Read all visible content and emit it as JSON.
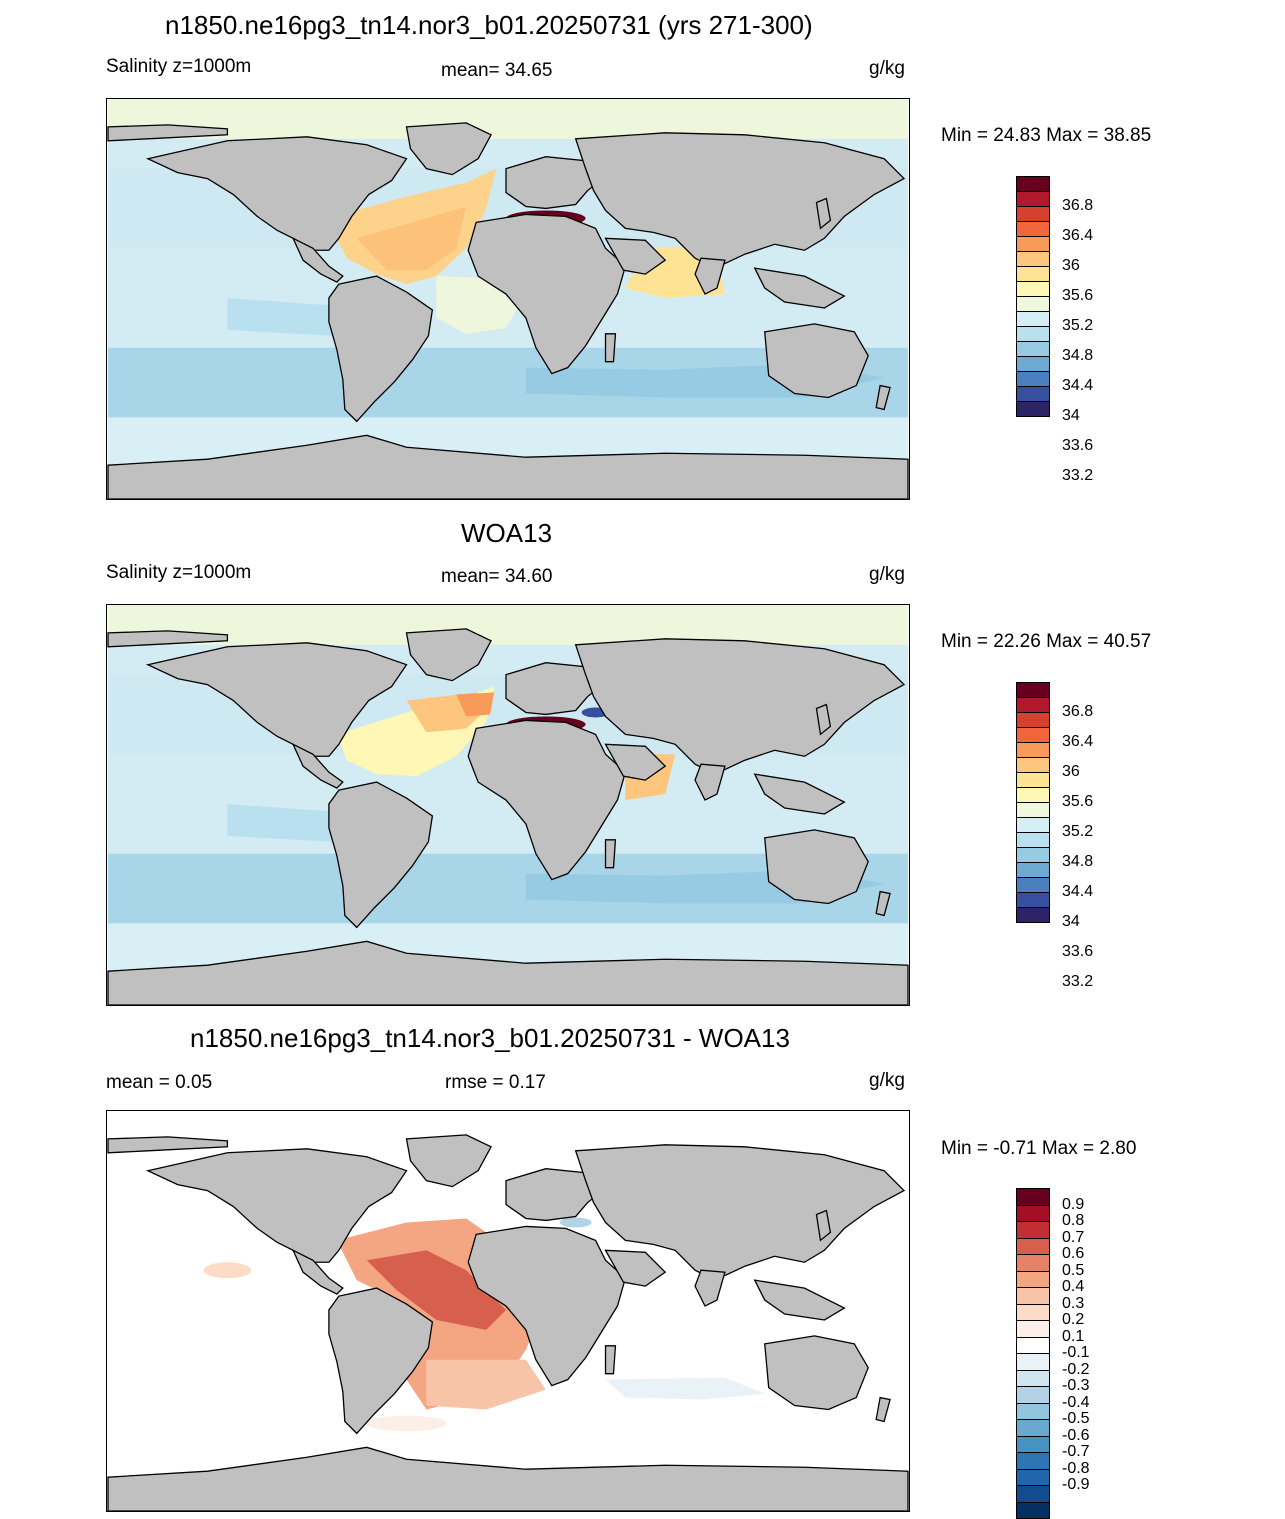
{
  "panels": [
    {
      "title": "n1850.ne16pg3_tn14.nor3_b01.20250731 (yrs 271-300)",
      "left_label": "Salinity z=1000m",
      "center_label": "mean=  34.65",
      "units": "g/kg",
      "minmax": "Min =  24.83 Max =  38.85",
      "ocean": "#d3ecf4",
      "bands": [
        {
          "c": "#eef7dc"
        },
        {
          "c": "#cfe9f3"
        },
        {
          "c": "#a9d5e8"
        },
        {
          "c": "#d8eff6"
        }
      ],
      "features": "atlantic-salty"
    },
    {
      "title": "WOA13",
      "left_label": "Salinity z=1000m",
      "center_label": "mean=  34.60",
      "units": "g/kg",
      "minmax": "Min =  22.26 Max =  40.57",
      "ocean": "#d3ecf4",
      "bands": [
        {
          "c": "#eef7dc"
        },
        {
          "c": "#cfe9f3"
        },
        {
          "c": "#a9d5e8"
        },
        {
          "c": "#d8eff6"
        }
      ],
      "features": "atlantic-woa"
    },
    {
      "title": "n1850.ne16pg3_tn14.nor3_b01.20250731 - WOA13",
      "left_label": "mean =   0.05",
      "center_label": "rmse =   0.17",
      "units": "g/kg",
      "minmax": "Min =  -0.71 Max =   2.80",
      "ocean": "#ffffff",
      "bands": [
        {
          "c": "#ffffff"
        },
        {
          "c": "#ffffff"
        },
        {
          "c": "#ffffff"
        },
        {
          "c": "#ffffff"
        }
      ],
      "features": "diff"
    }
  ],
  "colorbar_salinity": {
    "colors": [
      "#67001f",
      "#b2182b",
      "#d6402e",
      "#f0663a",
      "#f89a5a",
      "#fdc57d",
      "#fee395",
      "#fef7b5",
      "#eff8dd",
      "#d6eef6",
      "#b8e0ef",
      "#97cbe3",
      "#6ea9d3",
      "#4a7fc0",
      "#364f9e",
      "#2d2466"
    ],
    "labels": [
      "36.8",
      "36.4",
      "36",
      "35.6",
      "35.2",
      "34.8",
      "34.4",
      "34",
      "33.6",
      "33.2"
    ]
  },
  "colorbar_diff": {
    "colors": [
      "#67001f",
      "#a50f26",
      "#c32d34",
      "#d6604d",
      "#e58267",
      "#f4a582",
      "#f8c4a8",
      "#fddbc7",
      "#fcefe8",
      "#ffffff",
      "#e8f2f7",
      "#d1e5f0",
      "#b2d3e6",
      "#92c5de",
      "#6ba8d0",
      "#4393c3",
      "#2f75b3",
      "#2166ac",
      "#124c8f",
      "#053061"
    ],
    "labels": [
      "0.9",
      "0.8",
      "0.7",
      "0.6",
      "0.5",
      "0.4",
      "0.3",
      "0.2",
      "0.1",
      "-0.1",
      "-0.2",
      "-0.3",
      "-0.4",
      "-0.5",
      "-0.6",
      "-0.7",
      "-0.8",
      "-0.9"
    ]
  }
}
